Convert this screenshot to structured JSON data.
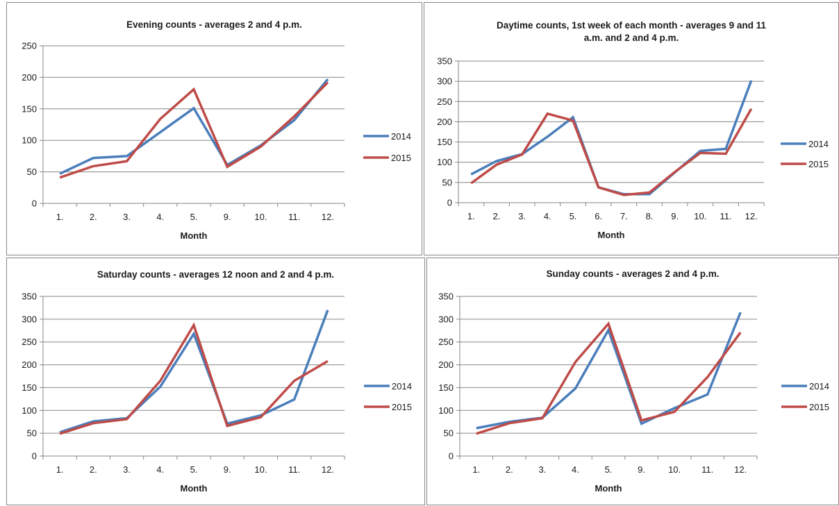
{
  "colors": {
    "series_2014": "#4a7ebb",
    "series_2015": "#be4b48",
    "grid": "#868686"
  },
  "chart_data": [
    {
      "type": "line",
      "title": "Evening counts - averages 2 and 4 p.m.",
      "xlabel": "Month",
      "categories": [
        "1.",
        "2.",
        "3.",
        "4.",
        "5.",
        "9.",
        "10.",
        "11.",
        "12."
      ],
      "ylim": [
        0,
        250
      ],
      "yticks": [
        0,
        50,
        100,
        150,
        200,
        250
      ],
      "grid": true,
      "legend_position": "right",
      "series": [
        {
          "name": "2014",
          "values": [
            47,
            72,
            75,
            113,
            151,
            61,
            92,
            132,
            197
          ]
        },
        {
          "name": "2015",
          "values": [
            41,
            59,
            67,
            134,
            181,
            58,
            90,
            138,
            192
          ]
        }
      ]
    },
    {
      "type": "line",
      "title": "Daytime counts, 1st week of each month - averages 9 and 11 a.m. and 2 and 4 p.m.",
      "xlabel": "Month",
      "categories": [
        "1.",
        "2.",
        "3.",
        "4.",
        "5.",
        "6.",
        "7.",
        "8.",
        "9.",
        "10.",
        "11.",
        "12."
      ],
      "ylim": [
        0,
        350
      ],
      "yticks": [
        0,
        50,
        100,
        150,
        200,
        250,
        300,
        350
      ],
      "grid": true,
      "legend_position": "right",
      "series": [
        {
          "name": "2014",
          "values": [
            70,
            103,
            120,
            163,
            211,
            38,
            21,
            21,
            75,
            128,
            133,
            302
          ]
        },
        {
          "name": "2015",
          "values": [
            48,
            94,
            119,
            220,
            203,
            38,
            19,
            25,
            76,
            123,
            121,
            232
          ]
        }
      ]
    },
    {
      "type": "line",
      "title": "Saturday counts - averages 12 noon and 2 and 4 p.m.",
      "xlabel": "Month",
      "categories": [
        "1.",
        "2.",
        "3.",
        "4.",
        "5.",
        "9.",
        "10.",
        "11.",
        "12."
      ],
      "ylim": [
        0,
        350
      ],
      "yticks": [
        0,
        50,
        100,
        150,
        200,
        250,
        300,
        350
      ],
      "grid": true,
      "legend_position": "right",
      "series": [
        {
          "name": "2014",
          "values": [
            52,
            76,
            83,
            152,
            268,
            71,
            89,
            124,
            320
          ]
        },
        {
          "name": "2015",
          "values": [
            49,
            72,
            81,
            165,
            287,
            66,
            85,
            165,
            208
          ]
        }
      ]
    },
    {
      "type": "line",
      "title": "Sunday counts - averages 2 and 4 p.m.",
      "xlabel": "Month",
      "categories": [
        "1.",
        "2.",
        "3.",
        "4.",
        "5.",
        "9.",
        "10.",
        "11.",
        "12."
      ],
      "ylim": [
        0,
        350
      ],
      "yticks": [
        0,
        50,
        100,
        150,
        200,
        250,
        300,
        350
      ],
      "grid": true,
      "legend_position": "right",
      "series": [
        {
          "name": "2014",
          "values": [
            61,
            75,
            84,
            148,
            276,
            71,
            105,
            135,
            315
          ]
        },
        {
          "name": "2015",
          "values": [
            49,
            72,
            83,
            206,
            290,
            78,
            97,
            173,
            271
          ]
        }
      ]
    }
  ]
}
